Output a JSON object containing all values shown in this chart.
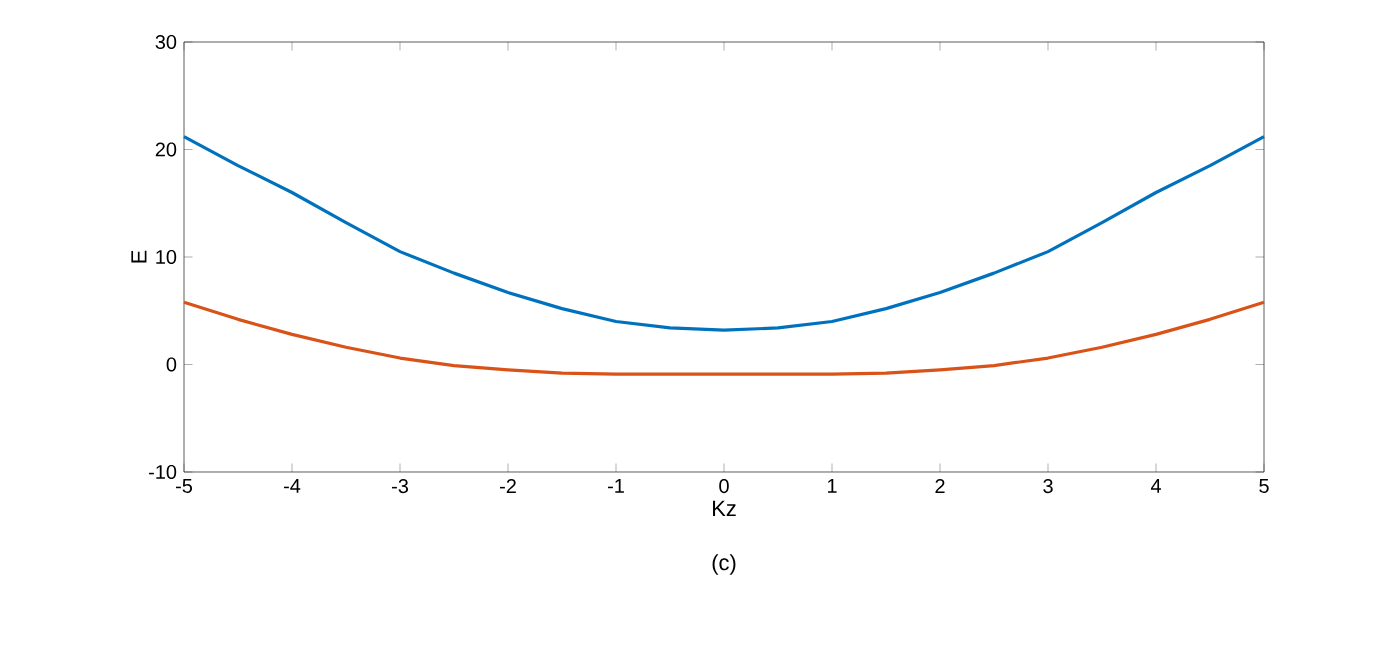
{
  "chart_data": {
    "type": "line",
    "xlabel": "Kz",
    "ylabel": "E",
    "annotations": [
      "(c)"
    ],
    "x": [
      -5,
      -4.5,
      -4,
      -3.5,
      -3,
      -2.5,
      -2,
      -1.5,
      -1,
      -0.5,
      0,
      0.5,
      1,
      1.5,
      2,
      2.5,
      3,
      3.5,
      4,
      4.5,
      5
    ],
    "series": [
      {
        "color": "#0072bd",
        "values": [
          21.2,
          18.5,
          16,
          13.2,
          10.5,
          8.5,
          6.7,
          5.2,
          4,
          3.4,
          3.2,
          3.4,
          4,
          5.2,
          6.7,
          8.5,
          10.5,
          13.2,
          16,
          18.5,
          21.2
        ]
      },
      {
        "color": "#d95319",
        "values": [
          5.8,
          4.2,
          2.8,
          1.6,
          0.6,
          -0.1,
          -0.5,
          -0.8,
          -0.9,
          -0.9,
          -0.9,
          -0.9,
          -0.9,
          -0.8,
          -0.5,
          -0.1,
          0.6,
          1.6,
          2.8,
          4.2,
          5.8
        ]
      }
    ],
    "xlim": [
      -5,
      5
    ],
    "ylim": [
      -10,
      30
    ],
    "xticks": [
      -5,
      -4,
      -3,
      -2,
      -1,
      0,
      1,
      2,
      3,
      4,
      5
    ],
    "yticks": [
      -10,
      0,
      10,
      20,
      30
    ],
    "grid": false,
    "marker": "none",
    "line_style": "solid"
  }
}
